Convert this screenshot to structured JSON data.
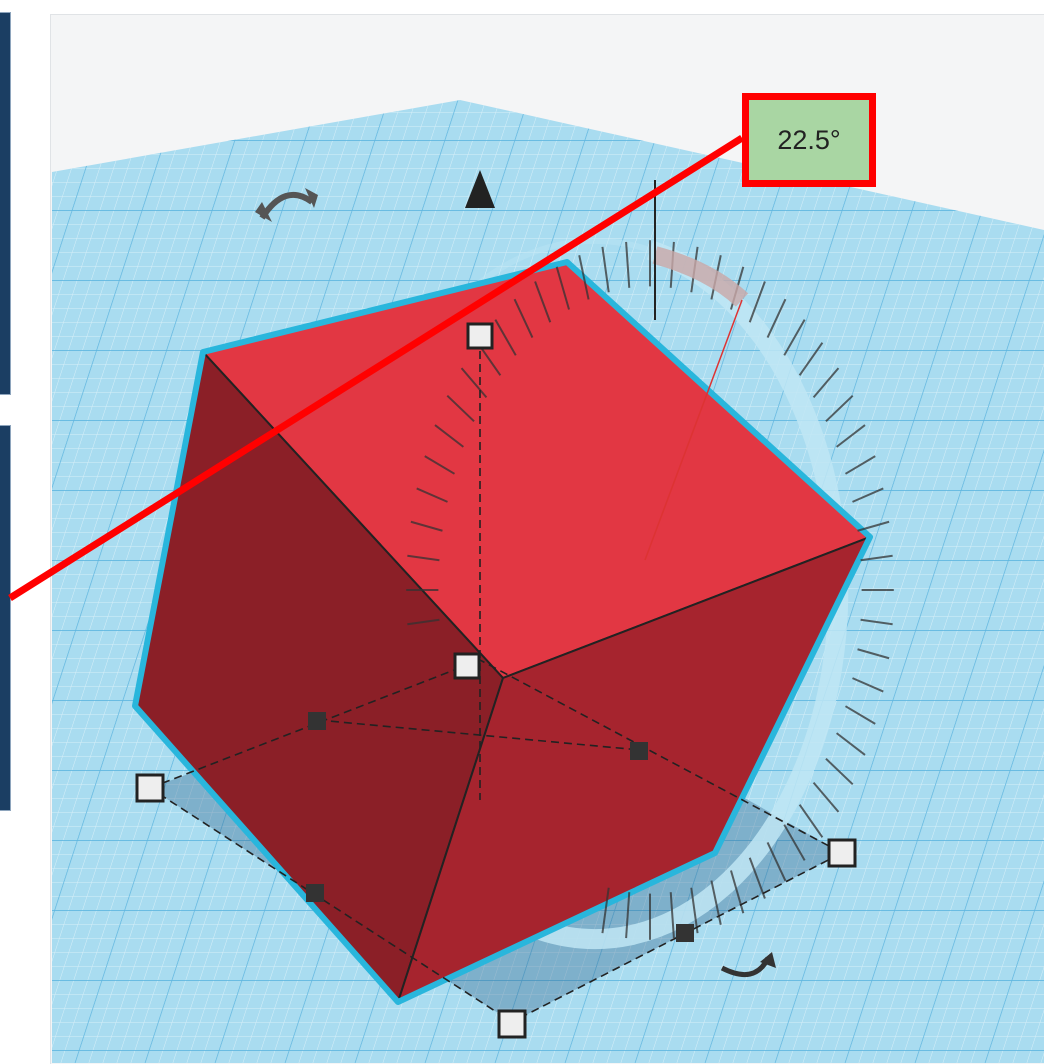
{
  "rotation_readout": {
    "angle_label": "22.5°"
  },
  "shape": {
    "type": "box",
    "color": "#e23743",
    "dark_side": "#8b1f27"
  },
  "workplane": {
    "color": "#a9dcf0",
    "grid_line_color": "#7fc4e4"
  },
  "colors": {
    "highlight": "#ff0000",
    "selection_outline": "#29b6dc",
    "label_bg": "#a9d6a3"
  },
  "icons": [
    "rotate-arrow-icon",
    "lift-arrow-icon",
    "rotate-arrow-bottom-icon"
  ]
}
